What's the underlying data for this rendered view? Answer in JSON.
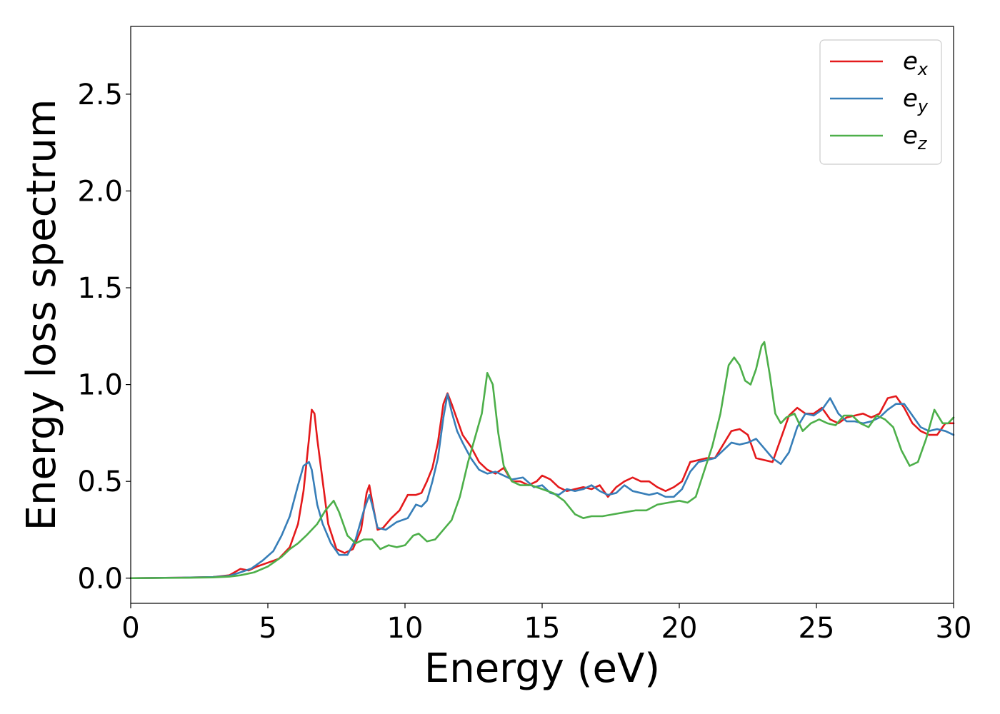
{
  "chart_data": {
    "type": "line",
    "title": "",
    "xlabel": "Energy (eV)",
    "ylabel": "Energy loss spectrum",
    "xlim": [
      0,
      30
    ],
    "ylim": [
      -0.13,
      2.85
    ],
    "xticks": [
      0,
      5,
      10,
      15,
      20,
      25,
      30
    ],
    "xtick_labels": [
      "0",
      "5",
      "10",
      "15",
      "20",
      "25",
      "30"
    ],
    "yticks": [
      0.0,
      0.5,
      1.0,
      1.5,
      2.0,
      2.5
    ],
    "ytick_labels": [
      "0.0",
      "0.5",
      "1.0",
      "1.5",
      "2.0",
      "2.5"
    ],
    "grid": false,
    "legend_position": "top-right",
    "series": [
      {
        "name": "e",
        "subscript": "x",
        "color": "#e41a1c",
        "x": [
          0,
          2,
          3,
          3.6,
          4.0,
          4.3,
          4.6,
          5.0,
          5.4,
          5.8,
          6.1,
          6.3,
          6.5,
          6.6,
          6.7,
          6.8,
          7.0,
          7.2,
          7.5,
          7.8,
          8.1,
          8.4,
          8.6,
          8.7,
          8.8,
          9.0,
          9.2,
          9.5,
          9.8,
          10.1,
          10.4,
          10.6,
          10.8,
          11.0,
          11.2,
          11.4,
          11.55,
          11.7,
          11.9,
          12.1,
          12.4,
          12.7,
          13.0,
          13.3,
          13.6,
          13.9,
          14.2,
          14.5,
          14.8,
          15.0,
          15.3,
          15.6,
          15.9,
          16.2,
          16.5,
          16.8,
          17.1,
          17.4,
          17.7,
          18.0,
          18.3,
          18.6,
          18.9,
          19.2,
          19.5,
          19.8,
          20.1,
          20.4,
          20.7,
          21.0,
          21.3,
          21.6,
          21.9,
          22.2,
          22.5,
          22.8,
          23.1,
          23.4,
          23.7,
          24.0,
          24.3,
          24.6,
          24.9,
          25.2,
          25.5,
          25.8,
          26.1,
          26.4,
          26.7,
          27.0,
          27.3,
          27.6,
          27.9,
          28.2,
          28.5,
          28.8,
          29.1,
          29.4,
          29.7,
          30
        ],
        "y": [
          0,
          0.003,
          0.006,
          0.015,
          0.048,
          0.04,
          0.06,
          0.08,
          0.1,
          0.16,
          0.28,
          0.45,
          0.72,
          0.87,
          0.85,
          0.72,
          0.5,
          0.28,
          0.15,
          0.13,
          0.15,
          0.25,
          0.44,
          0.48,
          0.4,
          0.25,
          0.26,
          0.31,
          0.35,
          0.43,
          0.43,
          0.44,
          0.5,
          0.57,
          0.7,
          0.9,
          0.955,
          0.9,
          0.82,
          0.74,
          0.68,
          0.6,
          0.56,
          0.54,
          0.57,
          0.5,
          0.5,
          0.48,
          0.5,
          0.53,
          0.51,
          0.47,
          0.45,
          0.46,
          0.47,
          0.46,
          0.48,
          0.42,
          0.47,
          0.5,
          0.52,
          0.5,
          0.5,
          0.47,
          0.45,
          0.47,
          0.5,
          0.6,
          0.61,
          0.62,
          0.62,
          0.69,
          0.76,
          0.77,
          0.74,
          0.62,
          0.61,
          0.6,
          0.72,
          0.84,
          0.88,
          0.85,
          0.85,
          0.88,
          0.82,
          0.8,
          0.83,
          0.84,
          0.85,
          0.83,
          0.85,
          0.93,
          0.94,
          0.88,
          0.8,
          0.76,
          0.74,
          0.74,
          0.8,
          0.8
        ]
      },
      {
        "name": "e",
        "subscript": "y",
        "color": "#377eb8",
        "x": [
          0,
          2,
          3,
          3.6,
          4.0,
          4.4,
          4.8,
          5.2,
          5.5,
          5.8,
          6.1,
          6.3,
          6.5,
          6.6,
          6.7,
          6.8,
          7.0,
          7.3,
          7.6,
          7.9,
          8.2,
          8.5,
          8.7,
          8.8,
          9.0,
          9.3,
          9.7,
          10.1,
          10.4,
          10.6,
          10.8,
          11.0,
          11.2,
          11.4,
          11.55,
          11.7,
          11.9,
          12.1,
          12.4,
          12.7,
          13.0,
          13.3,
          13.6,
          13.9,
          14.3,
          14.7,
          15.0,
          15.3,
          15.6,
          15.9,
          16.2,
          16.5,
          16.8,
          17.1,
          17.4,
          17.7,
          18.0,
          18.3,
          18.6,
          18.9,
          19.2,
          19.5,
          19.8,
          20.1,
          20.4,
          20.7,
          21.0,
          21.3,
          21.6,
          21.9,
          22.2,
          22.5,
          22.8,
          23.1,
          23.4,
          23.7,
          24.0,
          24.3,
          24.6,
          24.9,
          25.2,
          25.5,
          25.8,
          26.1,
          26.4,
          26.7,
          27.0,
          27.3,
          27.6,
          27.9,
          28.2,
          28.5,
          28.8,
          29.1,
          29.4,
          29.7,
          30
        ],
        "y": [
          0,
          0.003,
          0.006,
          0.012,
          0.03,
          0.05,
          0.09,
          0.14,
          0.22,
          0.32,
          0.48,
          0.58,
          0.6,
          0.56,
          0.47,
          0.38,
          0.28,
          0.18,
          0.12,
          0.12,
          0.2,
          0.35,
          0.43,
          0.38,
          0.26,
          0.25,
          0.29,
          0.31,
          0.38,
          0.37,
          0.4,
          0.5,
          0.62,
          0.83,
          0.95,
          0.86,
          0.76,
          0.7,
          0.62,
          0.56,
          0.54,
          0.55,
          0.53,
          0.51,
          0.52,
          0.47,
          0.48,
          0.44,
          0.43,
          0.46,
          0.45,
          0.46,
          0.48,
          0.45,
          0.43,
          0.44,
          0.48,
          0.45,
          0.44,
          0.43,
          0.44,
          0.42,
          0.42,
          0.46,
          0.55,
          0.6,
          0.61,
          0.62,
          0.66,
          0.7,
          0.69,
          0.7,
          0.72,
          0.67,
          0.62,
          0.59,
          0.65,
          0.78,
          0.85,
          0.84,
          0.87,
          0.93,
          0.85,
          0.81,
          0.81,
          0.8,
          0.81,
          0.83,
          0.87,
          0.9,
          0.9,
          0.84,
          0.78,
          0.76,
          0.77,
          0.76,
          0.74
        ]
      },
      {
        "name": "e",
        "subscript": "z",
        "color": "#4daf4a",
        "x": [
          0,
          2,
          3,
          3.6,
          4.0,
          4.5,
          5.0,
          5.5,
          5.8,
          6.1,
          6.4,
          6.8,
          7.1,
          7.4,
          7.6,
          7.9,
          8.2,
          8.5,
          8.8,
          9.1,
          9.4,
          9.7,
          10.0,
          10.3,
          10.5,
          10.8,
          11.1,
          11.4,
          11.7,
          12.0,
          12.3,
          12.6,
          12.8,
          13.0,
          13.2,
          13.4,
          13.6,
          13.9,
          14.2,
          14.6,
          15.0,
          15.4,
          15.8,
          16.2,
          16.5,
          16.8,
          17.2,
          17.6,
          18.0,
          18.4,
          18.8,
          19.2,
          19.6,
          20.0,
          20.3,
          20.6,
          20.9,
          21.2,
          21.5,
          21.8,
          22.0,
          22.2,
          22.4,
          22.6,
          22.8,
          23.0,
          23.1,
          23.3,
          23.5,
          23.7,
          23.9,
          24.2,
          24.5,
          24.8,
          25.1,
          25.4,
          25.7,
          26.0,
          26.3,
          26.6,
          26.9,
          27.2,
          27.5,
          27.8,
          28.1,
          28.4,
          28.7,
          29.0,
          29.3,
          29.6,
          29.8,
          30
        ],
        "y": [
          0,
          0.002,
          0.004,
          0.008,
          0.015,
          0.03,
          0.06,
          0.11,
          0.15,
          0.18,
          0.22,
          0.28,
          0.35,
          0.4,
          0.34,
          0.22,
          0.18,
          0.2,
          0.2,
          0.15,
          0.17,
          0.16,
          0.17,
          0.22,
          0.23,
          0.19,
          0.2,
          0.25,
          0.3,
          0.42,
          0.6,
          0.75,
          0.85,
          1.06,
          1.0,
          0.75,
          0.58,
          0.5,
          0.48,
          0.48,
          0.46,
          0.44,
          0.4,
          0.33,
          0.31,
          0.32,
          0.32,
          0.33,
          0.34,
          0.35,
          0.35,
          0.38,
          0.39,
          0.4,
          0.39,
          0.42,
          0.55,
          0.68,
          0.85,
          1.1,
          1.14,
          1.1,
          1.02,
          1.0,
          1.08,
          1.2,
          1.22,
          1.05,
          0.85,
          0.8,
          0.83,
          0.85,
          0.76,
          0.8,
          0.82,
          0.8,
          0.79,
          0.84,
          0.84,
          0.8,
          0.78,
          0.84,
          0.82,
          0.78,
          0.66,
          0.58,
          0.6,
          0.72,
          0.87,
          0.8,
          0.8,
          0.83
        ]
      }
    ]
  }
}
